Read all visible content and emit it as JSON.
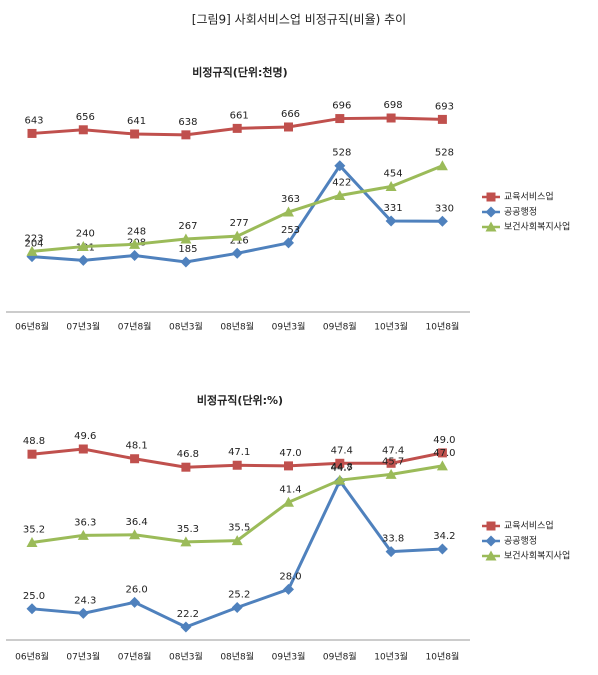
{
  "page_title": "[그림9] 사회서비스업 비정규직(비율) 추이",
  "chart_data": [
    {
      "type": "line",
      "title": "비정규직(단위:천명)",
      "categories": [
        "06년8월",
        "07년3월",
        "07년8월",
        "08년3월",
        "08년8월",
        "09년3월",
        "09년8월",
        "10년3월",
        "10년8월"
      ],
      "series": [
        {
          "name": "교육서비스업",
          "color": "#c0504d",
          "values": [
            643,
            656,
            641,
            638,
            661,
            666,
            696,
            698,
            693
          ]
        },
        {
          "name": "공공행정",
          "color": "#4f81bd",
          "values": [
            204,
            191,
            208,
            185,
            216,
            253,
            528,
            331,
            330
          ]
        },
        {
          "name": "보건사회복지사업",
          "color": "#9bbb59",
          "values": [
            223,
            240,
            248,
            267,
            277,
            363,
            422,
            454,
            528
          ]
        }
      ]
    },
    {
      "type": "line",
      "title": "비정규직(단위:%)",
      "categories": [
        "06년8월",
        "07년3월",
        "07년8월",
        "08년3월",
        "08년8월",
        "09년3월",
        "09년8월",
        "10년3월",
        "10년8월"
      ],
      "series": [
        {
          "name": "교육서비스업",
          "color": "#c0504d",
          "values": [
            48.8,
            49.6,
            48.1,
            46.8,
            47.1,
            47.0,
            47.4,
            47.4,
            49.0
          ],
          "value_labels": [
            "48.8",
            "49.6",
            "48.1",
            "46.8",
            "47.1",
            "47.0",
            "47.4",
            "47.4",
            "49.0"
          ]
        },
        {
          "name": "공공행정",
          "color": "#4f81bd",
          "values": [
            25.0,
            24.3,
            26.0,
            22.2,
            25.2,
            28.0,
            44.7,
            33.8,
            34.2
          ],
          "value_labels": [
            "25.0",
            "24.3",
            "26.0",
            "22.2",
            "25.2",
            "28.0",
            "44.7",
            "33.8",
            "34.2"
          ]
        },
        {
          "name": "보건사회복지사업",
          "color": "#9bbb59",
          "values": [
            35.2,
            36.3,
            36.4,
            35.3,
            35.5,
            41.4,
            44.8,
            45.7,
            47.0
          ],
          "value_labels": [
            "35.2",
            "36.3",
            "36.4",
            "35.3",
            "35.5",
            "41.4",
            "44.8",
            "45.7",
            "47.0"
          ]
        }
      ]
    }
  ]
}
